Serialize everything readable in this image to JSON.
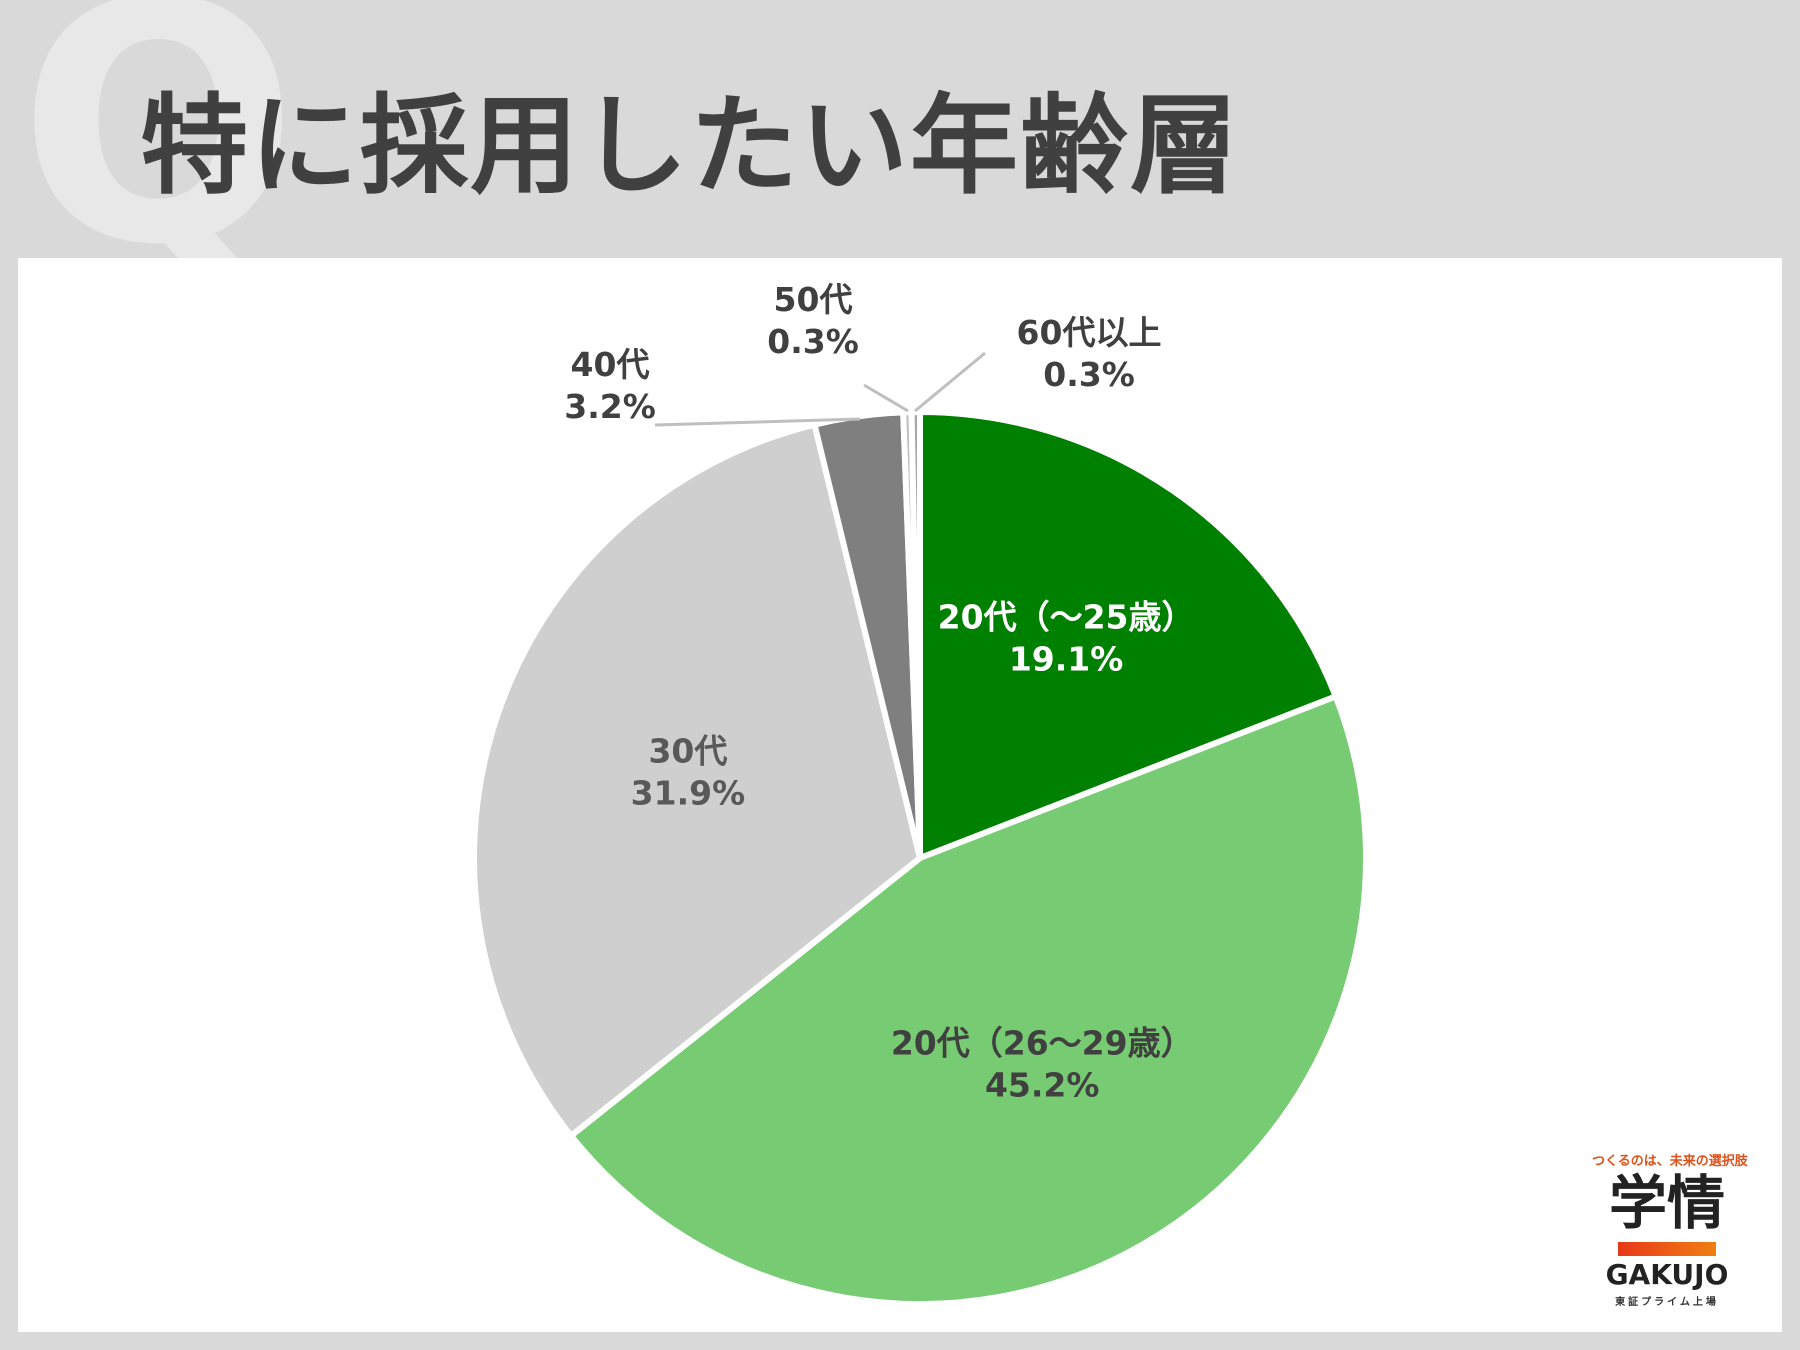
{
  "decor": {
    "q_mark": "Q"
  },
  "title": "特に採用したい年齢層",
  "chart_data": {
    "type": "pie",
    "title": "特に採用したい年齢層",
    "start": "12 o'clock, clockwise",
    "slices": [
      {
        "label": "20代（～25歳）",
        "value": 19.1,
        "value_text": "19.1%",
        "color": "#008000",
        "label_color": "#ffffff"
      },
      {
        "label": "20代（26～29歳）",
        "value": 45.2,
        "value_text": "45.2%",
        "color": "#77cc73",
        "label_color": "#404040"
      },
      {
        "label": "30代",
        "value": 31.9,
        "value_text": "31.9%",
        "color": "#d0cfd0",
        "label_color": "#595959"
      },
      {
        "label": "40代",
        "value": 3.2,
        "value_text": "3.2%",
        "color": "#7f7f7f",
        "label_color": "#404040"
      },
      {
        "label": "50代",
        "value": 0.3,
        "value_text": "0.3%",
        "color": "#bfbfbf",
        "label_color": "#404040"
      },
      {
        "label": "60代以上",
        "value": 0.3,
        "value_text": "0.3%",
        "color": "#a6a6a6",
        "label_color": "#404040"
      }
    ]
  },
  "logo": {
    "tagline": "つくるのは、未来の選択肢",
    "name_ja": "学情",
    "name_en": "GAKUJO",
    "sub": "東証プライム上場",
    "bar_colors": [
      "#e8381a",
      "#f07f12"
    ]
  }
}
